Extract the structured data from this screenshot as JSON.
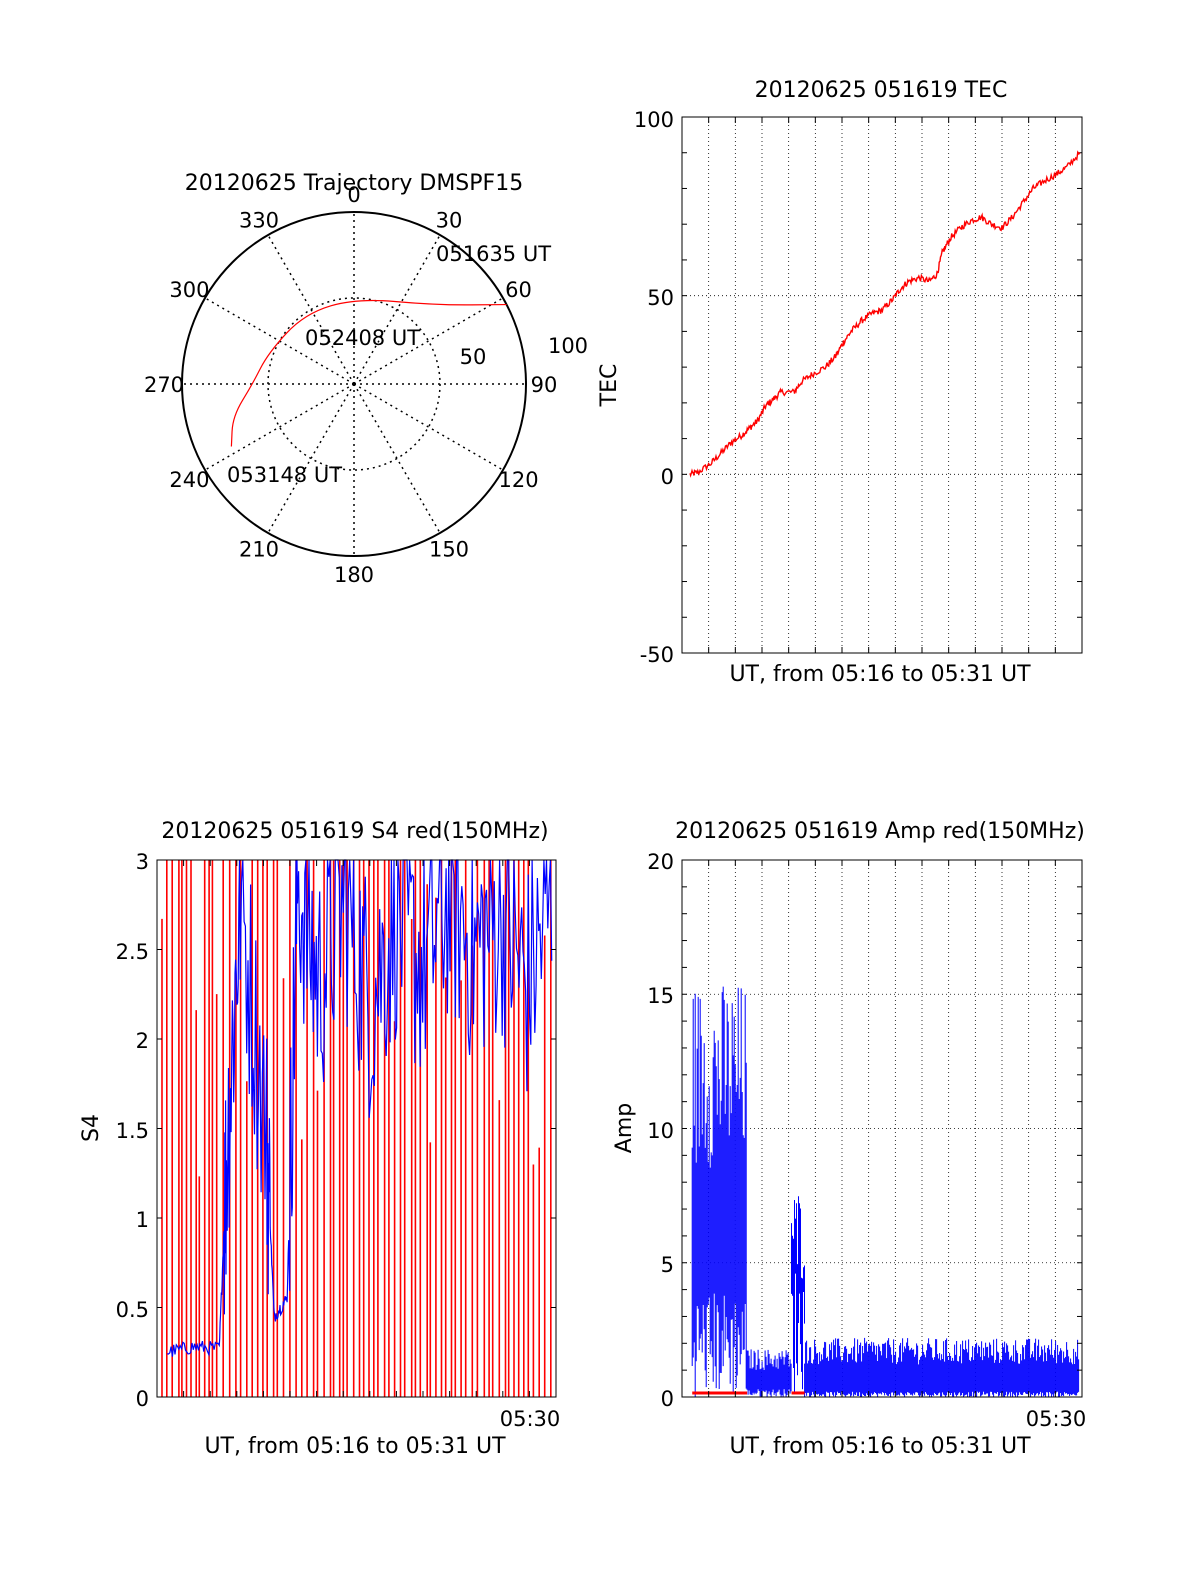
{
  "colors": {
    "red": "#ff0000",
    "blue": "#0000ff",
    "axis": "#000000",
    "grid": "#000000"
  },
  "chart_data": [
    {
      "id": "trajectory",
      "type": "scatter",
      "title": "20120625 Trajectory DMSPF15",
      "angle_labels": [
        "0",
        "30",
        "60",
        "90",
        "120",
        "150",
        "180",
        "210",
        "240",
        "270",
        "300",
        "330"
      ],
      "ring_labels": [
        "50",
        "100"
      ],
      "rlim": [
        0,
        100
      ],
      "grid": true,
      "track": {
        "color": "#ff0000",
        "points_az_r": [
          [
            62.5,
            100
          ],
          [
            46,
            66
          ],
          [
            2,
            50
          ],
          [
            -35,
            50
          ],
          [
            -70,
            53
          ],
          [
            -90,
            59
          ],
          [
            -105,
            73
          ],
          [
            -117,
            80
          ]
        ]
      },
      "annotations": [
        "051635 UT",
        "052408 UT",
        "053148 UT"
      ]
    },
    {
      "id": "tec",
      "type": "line",
      "title": "20120625 051619 TEC",
      "xlabel": "UT, from 05:16 to 05:31 UT",
      "ylabel": "TEC",
      "ylim": [
        -50,
        100
      ],
      "yticks": [
        "-50",
        "0",
        "50",
        "100"
      ],
      "grid": true,
      "series": [
        {
          "color": "#ff0000",
          "points_min_tec": [
            [
              0,
              0
            ],
            [
              0.3,
              0.5
            ],
            [
              0.8,
              3
            ],
            [
              1.2,
              6
            ],
            [
              1.6,
              9
            ],
            [
              2.0,
              11
            ],
            [
              2.3,
              13
            ],
            [
              2.6,
              15
            ],
            [
              2.9,
              19
            ],
            [
              3.2,
              21
            ],
            [
              3.5,
              23
            ],
            [
              4.0,
              23
            ],
            [
              4.3,
              26
            ],
            [
              4.7,
              28
            ],
            [
              5.2,
              30
            ],
            [
              5.6,
              33
            ],
            [
              5.9,
              37
            ],
            [
              6.2,
              40
            ],
            [
              6.6,
              43
            ],
            [
              7.0,
              45
            ],
            [
              7.4,
              46
            ],
            [
              7.8,
              49
            ],
            [
              8.1,
              52
            ],
            [
              8.4,
              54
            ],
            [
              8.8,
              55
            ],
            [
              9.2,
              54
            ],
            [
              9.5,
              56
            ],
            [
              9.7,
              62
            ],
            [
              10.0,
              66
            ],
            [
              10.4,
              69
            ],
            [
              10.8,
              71
            ],
            [
              11.2,
              72
            ],
            [
              11.6,
              70
            ],
            [
              12.0,
              69
            ],
            [
              12.4,
              72
            ],
            [
              12.8,
              76
            ],
            [
              13.2,
              80
            ],
            [
              13.6,
              82
            ],
            [
              14.1,
              84
            ],
            [
              14.5,
              86
            ],
            [
              15.0,
              90
            ]
          ]
        }
      ]
    },
    {
      "id": "s4",
      "type": "line",
      "title": "20120625 051619 S4 red(150MHz)",
      "xlabel": "UT, from 05:16 to 05:31 UT",
      "ylabel": "S4",
      "ylim": [
        0,
        3
      ],
      "yticks": [
        "0",
        "0.5",
        "1",
        "1.5",
        "2",
        "2.5",
        "3"
      ],
      "xtick_label": "05:30",
      "grid": false,
      "series": [
        {
          "color": "#ff0000",
          "description_values": [
            0,
            3
          ]
        },
        {
          "color": "#0000ff",
          "points_min_s4": [
            [
              0.2,
              0.25
            ],
            [
              1.2,
              0.28
            ],
            [
              2.2,
              0.27
            ],
            [
              2.5,
              1.4
            ],
            [
              3.0,
              2.8
            ],
            [
              4.0,
              1.5
            ],
            [
              4.3,
              0.45
            ],
            [
              4.8,
              0.55
            ],
            [
              5.2,
              2.9
            ],
            [
              6.0,
              2.3
            ],
            [
              7.0,
              2.8
            ],
            [
              8.0,
              2.2
            ],
            [
              9.0,
              2.7
            ],
            [
              10.0,
              2.4
            ],
            [
              11.0,
              2.8
            ],
            [
              12.0,
              2.5
            ],
            [
              13.0,
              2.7
            ],
            [
              14.0,
              2.3
            ],
            [
              15.0,
              2.8
            ]
          ]
        }
      ]
    },
    {
      "id": "amp",
      "type": "line",
      "title": "20120625 051619 Amp red(150MHz)",
      "xlabel": "UT, from 05:16 to 05:31 UT",
      "ylabel": "Amp",
      "ylim": [
        0,
        20
      ],
      "yticks": [
        "0",
        "5",
        "10",
        "15",
        "20"
      ],
      "xtick_label": "05:30",
      "grid": true,
      "series": [
        {
          "color": "#0000ff",
          "segments_min_low_high": [
            [
              0.2,
              2.3,
              4.0,
              15.5
            ],
            [
              2.3,
              4.0,
              0.3,
              1.8
            ],
            [
              4.0,
              4.5,
              5.0,
              7.8
            ],
            [
              4.5,
              15.0,
              0.2,
              2.2
            ]
          ]
        },
        {
          "color": "#ff0000",
          "segments_min_level": [
            [
              0.2,
              2.3,
              0.15
            ],
            [
              4.0,
              4.5,
              0.15
            ]
          ]
        }
      ]
    }
  ]
}
